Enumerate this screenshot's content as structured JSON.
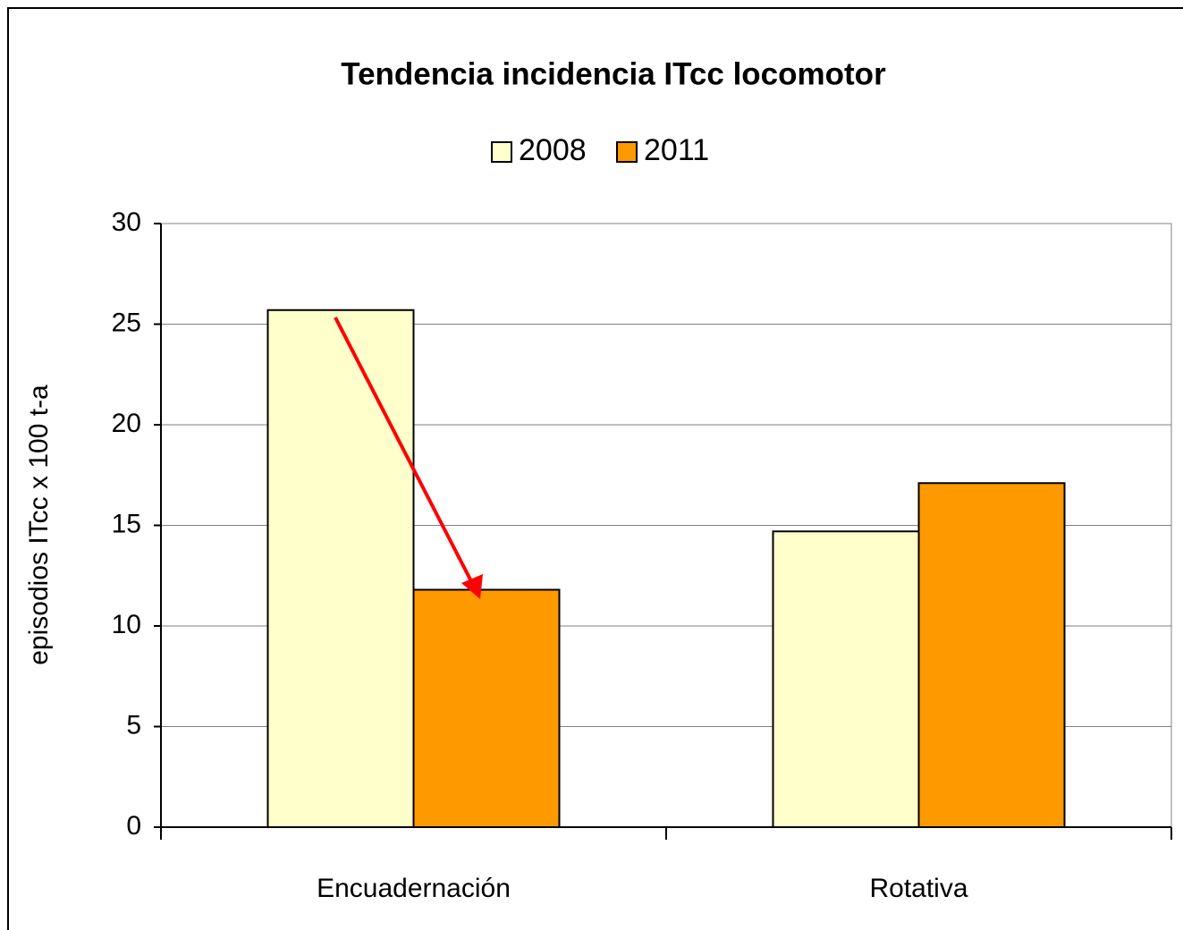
{
  "chart_data": {
    "type": "bar",
    "title": "Tendencia incidencia ITcc locomotor",
    "y_axis_label": "episodios ITcc x 100 t-a",
    "categories": [
      "Encuadernación",
      "Rotativa"
    ],
    "series": [
      {
        "name": "2008",
        "color": "#ffffcc",
        "values": [
          25.7,
          14.7
        ]
      },
      {
        "name": "2011",
        "color": "#ff9900",
        "values": [
          11.8,
          17.1
        ]
      }
    ],
    "ylim": [
      0,
      30
    ],
    "yticks": [
      0,
      5,
      10,
      15,
      20,
      25,
      30
    ],
    "grid": true,
    "legend": "top"
  }
}
